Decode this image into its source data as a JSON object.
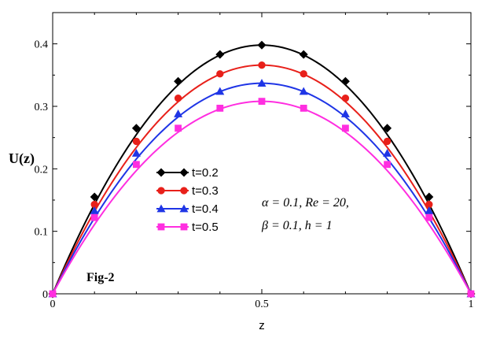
{
  "chart_data": {
    "type": "line",
    "title": "",
    "xlabel": "z",
    "ylabel": "U(z)",
    "xlim": [
      0,
      1
    ],
    "ylim": [
      0,
      0.45
    ],
    "x_ticks": [
      "0",
      "0.5",
      "1"
    ],
    "y_ticks": [
      "0",
      "0.1",
      "0.2",
      "0.3",
      "0.4"
    ],
    "grid": false,
    "legend_position": "center-left",
    "marker_x": [
      0,
      0.1,
      0.2,
      0.3,
      0.4,
      0.5,
      0.6,
      0.7,
      0.8,
      0.9,
      1.0
    ],
    "series": [
      {
        "name": "t=0.2",
        "color": "#000000",
        "marker": "diamond",
        "peak": 0.398,
        "values": [
          0,
          0.155,
          0.265,
          0.34,
          0.383,
          0.398,
          0.383,
          0.34,
          0.265,
          0.155,
          0
        ]
      },
      {
        "name": "t=0.3",
        "color": "#e8201a",
        "marker": "circle",
        "peak": 0.366,
        "values": [
          0,
          0.143,
          0.244,
          0.313,
          0.352,
          0.366,
          0.352,
          0.313,
          0.244,
          0.143,
          0
        ]
      },
      {
        "name": "t=0.4",
        "color": "#1f35e6",
        "marker": "triangle",
        "peak": 0.337,
        "values": [
          0,
          0.133,
          0.225,
          0.288,
          0.324,
          0.337,
          0.324,
          0.288,
          0.225,
          0.133,
          0
        ]
      },
      {
        "name": "t=0.5",
        "color": "#ff2ee0",
        "marker": "square",
        "peak": 0.308,
        "values": [
          0,
          0.122,
          0.207,
          0.265,
          0.297,
          0.308,
          0.297,
          0.265,
          0.207,
          0.122,
          0
        ]
      }
    ],
    "annotations": {
      "fig_label": "Fig-2",
      "params_line1": "α = 0.1, Re = 20,",
      "params_line2": "β = 0.1,   h = 1"
    }
  }
}
